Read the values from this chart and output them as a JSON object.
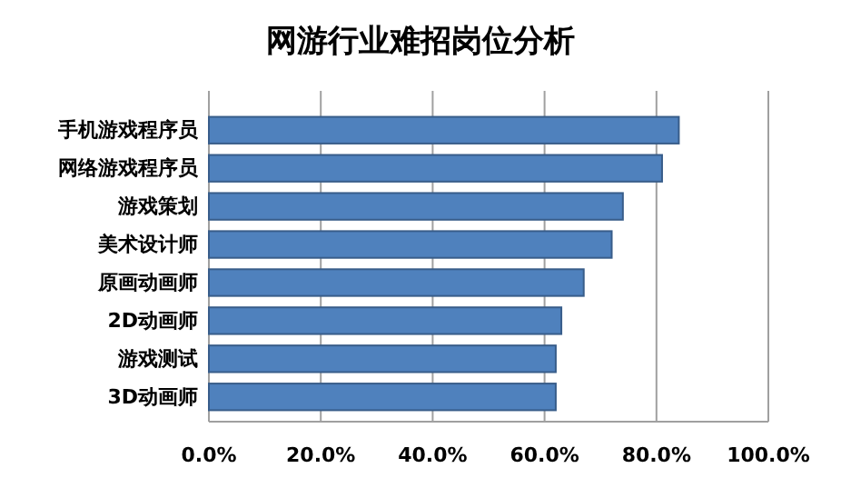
{
  "chart_data": {
    "type": "bar",
    "orientation": "horizontal",
    "title": "网游行业难招岗位分析",
    "categories": [
      "手机游戏程序员",
      "网络游戏程序员",
      "游戏策划",
      "美术设计师",
      "原画动画师",
      "2D动画师",
      "游戏测试",
      "3D动画师"
    ],
    "values": [
      84,
      81,
      74,
      72,
      67,
      63,
      62,
      62
    ],
    "color": "#4f81bd",
    "xlim": [
      0,
      100
    ],
    "xticks": [
      {
        "value": 0,
        "label": "0.0%"
      },
      {
        "value": 20,
        "label": "20.0%"
      },
      {
        "value": 40,
        "label": "40.0%"
      },
      {
        "value": 60,
        "label": "60.0%"
      },
      {
        "value": 80,
        "label": "80.0%"
      },
      {
        "value": 100,
        "label": "100.0%"
      }
    ],
    "grid": "x"
  }
}
